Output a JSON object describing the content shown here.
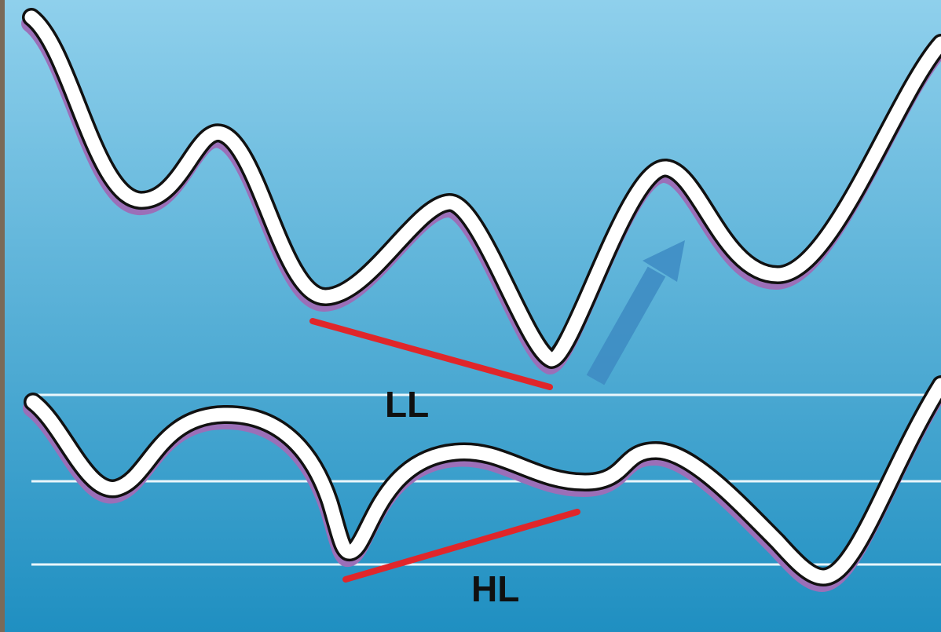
{
  "labels": {
    "lower_low": "LL",
    "higher_low": "HL"
  },
  "colors": {
    "background_top": "#8fd0ec",
    "background_bottom": "#1f8fc1",
    "curve_fill": "#ffffff",
    "curve_outline": "#111111",
    "curve_shadow": "#9b6fb8",
    "divergence_line": "#e0262a",
    "arrow": "#3f8dc4",
    "reference_line": "#e9f6fb",
    "frame_edge": "#7a6a58"
  },
  "icons": {
    "arrow": "arrow-up-right-icon"
  }
}
